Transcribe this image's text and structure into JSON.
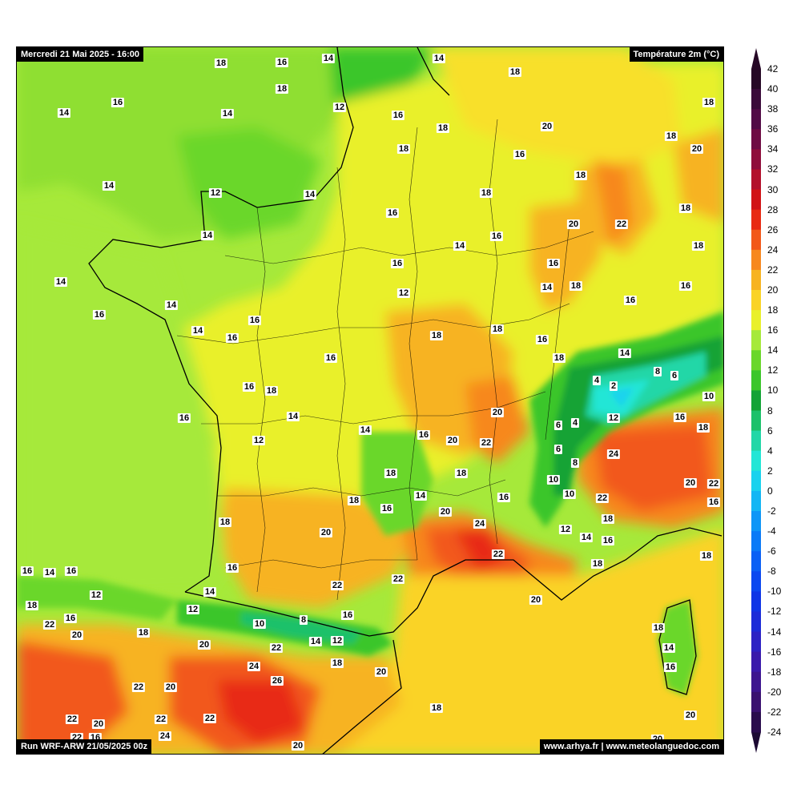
{
  "header": {
    "date_label": "Mercredi 21 Mai 2025 - 16:00",
    "variable_label": "Température 2m (°C)"
  },
  "footer": {
    "run_label": "Run WRF-ARW 21/05/2025 00z",
    "site_label": "www.arhya.fr | www.meteolanguedoc.com"
  },
  "colorbar": {
    "ticks": [
      "42",
      "40",
      "38",
      "36",
      "34",
      "32",
      "30",
      "28",
      "26",
      "24",
      "22",
      "20",
      "18",
      "16",
      "14",
      "12",
      "10",
      "8",
      "6",
      "4",
      "2",
      "0",
      "-2",
      "-4",
      "-6",
      "-8",
      "-10",
      "-12",
      "-14",
      "-16",
      "-18",
      "-20",
      "-22",
      "-24"
    ],
    "colors": {
      "-24": "#1c0a33",
      "-22": "#2a0c4d",
      "-20": "#3a1170",
      "-18": "#3d158f",
      "-16": "#3a1aab",
      "-14": "#2d22c4",
      "-12": "#1c2bd8",
      "-10": "#0f35e6",
      "-8": "#0b48f0",
      "-6": "#0a60f5",
      "-4": "#0a7af7",
      "-2": "#0d96f7",
      "0": "#13b6f4",
      "2": "#1ad2ee",
      "4": "#22e6d6",
      "6": "#22d7a7",
      "8": "#1cc16a",
      "10": "#13a336",
      "12": "#3bc62a",
      "14": "#6ad72a",
      "16": "#a6e93a",
      "18": "#e9f02a",
      "20": "#fad325",
      "22": "#f7b321",
      "24": "#f7881f",
      "26": "#f2581a",
      "28": "#e82a13",
      "30": "#d11316",
      "32": "#b3102b",
      "34": "#8f0d3b",
      "36": "#6e0b44",
      "38": "#510a46",
      "40": "#3a0a3a",
      "42": "#260826"
    }
  },
  "map_labels": [
    {
      "v": "18"
    },
    {
      "v": "16"
    },
    {
      "v": "14"
    },
    {
      "v": "14"
    },
    {
      "v": "18"
    },
    {
      "v": "18"
    },
    {
      "v": "14"
    },
    {
      "v": "16"
    },
    {
      "v": "12"
    },
    {
      "v": "18"
    },
    {
      "v": "14"
    },
    {
      "v": "16"
    },
    {
      "v": "18"
    },
    {
      "v": "20"
    },
    {
      "v": "18"
    },
    {
      "v": "20"
    },
    {
      "v": "18"
    },
    {
      "v": "16"
    },
    {
      "v": "14"
    },
    {
      "v": "12"
    },
    {
      "v": "14"
    },
    {
      "v": "18"
    },
    {
      "v": "18"
    },
    {
      "v": "16"
    },
    {
      "v": "20"
    },
    {
      "v": "22"
    },
    {
      "v": "18"
    },
    {
      "v": "14"
    },
    {
      "v": "16"
    },
    {
      "v": "18"
    },
    {
      "v": "14"
    },
    {
      "v": "16"
    },
    {
      "v": "14"
    },
    {
      "v": "16"
    },
    {
      "v": "14"
    },
    {
      "v": "18"
    },
    {
      "v": "16"
    },
    {
      "v": "14"
    },
    {
      "v": "16"
    },
    {
      "v": "16"
    },
    {
      "v": "12"
    },
    {
      "v": "14"
    },
    {
      "v": "16"
    },
    {
      "v": "18"
    },
    {
      "v": "18"
    },
    {
      "v": "16"
    },
    {
      "v": "14"
    },
    {
      "v": "16"
    },
    {
      "v": "18"
    },
    {
      "v": "16"
    },
    {
      "v": "4"
    },
    {
      "v": "2"
    },
    {
      "v": "8"
    },
    {
      "v": "6"
    },
    {
      "v": "10"
    },
    {
      "v": "16"
    },
    {
      "v": "18"
    },
    {
      "v": "14"
    },
    {
      "v": "20"
    },
    {
      "v": "6"
    },
    {
      "v": "4"
    },
    {
      "v": "12"
    },
    {
      "v": "16"
    },
    {
      "v": "18"
    },
    {
      "v": "16"
    },
    {
      "v": "14"
    },
    {
      "v": "16"
    },
    {
      "v": "20"
    },
    {
      "v": "22"
    },
    {
      "v": "6"
    },
    {
      "v": "24"
    },
    {
      "v": "8"
    },
    {
      "v": "12"
    },
    {
      "v": "18"
    },
    {
      "v": "18"
    },
    {
      "v": "10"
    },
    {
      "v": "20"
    },
    {
      "v": "22"
    },
    {
      "v": "18"
    },
    {
      "v": "16"
    },
    {
      "v": "14"
    },
    {
      "v": "16"
    },
    {
      "v": "10"
    },
    {
      "v": "22"
    },
    {
      "v": "20"
    },
    {
      "v": "16"
    },
    {
      "v": "18"
    },
    {
      "v": "20"
    },
    {
      "v": "24"
    },
    {
      "v": "12"
    },
    {
      "v": "14"
    },
    {
      "v": "16"
    },
    {
      "v": "18"
    },
    {
      "v": "16"
    },
    {
      "v": "14"
    },
    {
      "v": "16"
    },
    {
      "v": "16"
    },
    {
      "v": "22"
    },
    {
      "v": "18"
    },
    {
      "v": "18"
    },
    {
      "v": "12"
    },
    {
      "v": "14"
    },
    {
      "v": "22"
    },
    {
      "v": "22"
    },
    {
      "v": "20"
    },
    {
      "v": "18"
    },
    {
      "v": "12"
    },
    {
      "v": "16"
    },
    {
      "v": "18"
    },
    {
      "v": "22"
    },
    {
      "v": "16"
    },
    {
      "v": "20"
    },
    {
      "v": "10"
    },
    {
      "v": "8"
    },
    {
      "v": "14"
    },
    {
      "v": "12"
    },
    {
      "v": "18"
    },
    {
      "v": "20"
    },
    {
      "v": "22"
    },
    {
      "v": "14"
    },
    {
      "v": "16"
    },
    {
      "v": "18"
    },
    {
      "v": "24"
    },
    {
      "v": "20"
    },
    {
      "v": "22"
    },
    {
      "v": "20"
    },
    {
      "v": "26"
    },
    {
      "v": "18"
    },
    {
      "v": "20"
    },
    {
      "v": "22"
    },
    {
      "v": "22"
    },
    {
      "v": "22"
    },
    {
      "v": "24"
    },
    {
      "v": "20"
    },
    {
      "v": "20"
    },
    {
      "v": "20"
    },
    {
      "v": "22"
    },
    {
      "v": "16"
    }
  ]
}
